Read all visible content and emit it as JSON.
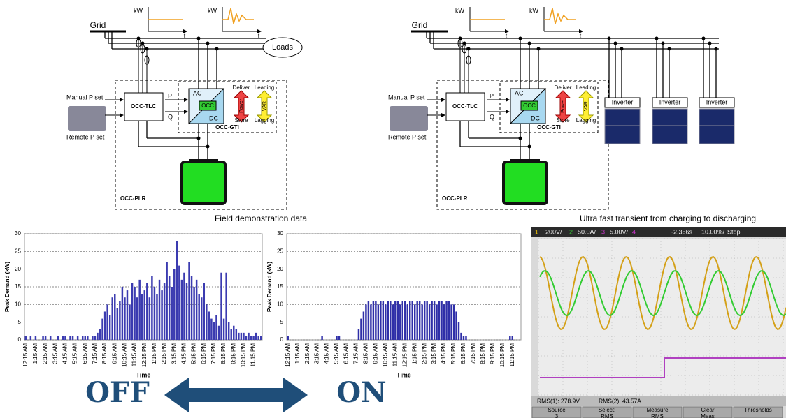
{
  "diagrams": [
    {
      "grid": "Grid",
      "kw_labels": [
        "kW",
        "kW"
      ],
      "t_labels": [
        "t",
        "t"
      ],
      "loads": "Loads",
      "manual": "Manual P set",
      "remote": "Remote P set",
      "tlc": "OCC-TLC",
      "p": "P",
      "q": "Q",
      "ac": "AC",
      "dc": "DC",
      "occ": "OCC",
      "deliver": "Deliver",
      "power": "Power",
      "store": "Store",
      "leading": "Leading",
      "var": "VAR",
      "lagging": "Lagging",
      "gti": "OCC-GTI",
      "plr": "OCC-PLR"
    },
    {
      "grid": "Grid",
      "kw_labels": [
        "kW",
        "kW"
      ],
      "t_labels": [
        "t",
        "t"
      ],
      "manual": "Manual P set",
      "remote": "Remote P set",
      "tlc": "OCC-TLC",
      "p": "P",
      "q": "Q",
      "ac": "AC",
      "dc": "DC",
      "occ": "OCC",
      "deliver": "Deliver",
      "power": "Power",
      "store": "Store",
      "leading": "Leading",
      "var": "VAR",
      "lagging": "Lagging",
      "gti": "OCC-GTI",
      "plr": "OCC-PLR",
      "inverters": [
        "Inverter",
        "Inverter",
        "Inverter"
      ]
    }
  ],
  "captions": [
    "Field demonstration data",
    "Ultra fast transient from charging to discharging"
  ],
  "arrow": {
    "left": "OFF",
    "right": "ON"
  },
  "chart_data": [
    {
      "type": "bar",
      "ylabel": "Peak Demand (kW)",
      "xlabel": "Time",
      "color": "#3b3bb0",
      "ylim": [
        0,
        30
      ],
      "yticks": [
        0,
        5,
        10,
        15,
        20,
        25,
        30
      ],
      "grid": true,
      "categories": [
        "12:15 AM",
        null,
        null,
        null,
        "1:15 AM",
        null,
        null,
        null,
        "2:15 AM",
        null,
        null,
        null,
        "3:15 AM",
        null,
        null,
        null,
        "4:15 AM",
        null,
        null,
        null,
        "5:15 AM",
        null,
        null,
        null,
        "6:15 AM",
        null,
        null,
        null,
        "7:15 AM",
        null,
        null,
        null,
        "8:15 AM",
        null,
        null,
        null,
        "9:15 AM",
        null,
        null,
        null,
        "10:15 AM",
        null,
        null,
        null,
        "11:15 AM",
        null,
        null,
        null,
        "12:15 PM",
        null,
        null,
        null,
        "1:15 PM",
        null,
        null,
        null,
        "2:15 PM",
        null,
        null,
        null,
        "3:15 PM",
        null,
        null,
        null,
        "4:15 PM",
        null,
        null,
        null,
        "5:15 PM",
        null,
        null,
        null,
        "6:15 PM",
        null,
        null,
        null,
        "7:15 PM",
        null,
        null,
        null,
        "8:15 PM",
        null,
        null,
        null,
        "9:15 PM",
        null,
        null,
        null,
        "10:15 PM",
        null,
        null,
        null,
        "11:15 PM",
        null,
        null,
        null
      ],
      "values": [
        1,
        0,
        1,
        0,
        1,
        0,
        0,
        1,
        1,
        0,
        1,
        0,
        0,
        1,
        0,
        1,
        1,
        0,
        1,
        1,
        0,
        1,
        0,
        1,
        1,
        1,
        0,
        1,
        1,
        2,
        3,
        6,
        8,
        10,
        7,
        12,
        13,
        9,
        11,
        15,
        12,
        14,
        10,
        16,
        15,
        12,
        17,
        13,
        14,
        16,
        12,
        18,
        15,
        13,
        17,
        14,
        16,
        22,
        18,
        15,
        20,
        28,
        21,
        17,
        19,
        16,
        22,
        18,
        15,
        17,
        13,
        12,
        16,
        10,
        8,
        6,
        5,
        7,
        4,
        19,
        6,
        19,
        5,
        3,
        4,
        3,
        2,
        2,
        2,
        1,
        2,
        1,
        1,
        2,
        1,
        1
      ]
    },
    {
      "type": "bar",
      "ylabel": "Peak Demand (kW)",
      "xlabel": "Time",
      "color": "#2f2fa8",
      "ylim": [
        0,
        30
      ],
      "yticks": [
        0,
        5,
        10,
        15,
        20,
        25,
        30
      ],
      "grid": true,
      "categories": [
        "12:15 AM",
        null,
        null,
        null,
        "1:15 AM",
        null,
        null,
        null,
        "2:15 AM",
        null,
        null,
        null,
        "3:15 AM",
        null,
        null,
        null,
        "4:15 AM",
        null,
        null,
        null,
        "5:15 AM",
        null,
        null,
        null,
        "6:15 AM",
        null,
        null,
        null,
        "7:15 AM",
        null,
        null,
        null,
        "8:15 AM",
        null,
        null,
        null,
        "9:15 AM",
        null,
        null,
        null,
        "10:15 AM",
        null,
        null,
        null,
        "11:15 AM",
        null,
        null,
        null,
        "12:15 PM",
        null,
        null,
        null,
        "1:15 PM",
        null,
        null,
        null,
        "2:15 PM",
        null,
        null,
        null,
        "3:15 PM",
        null,
        null,
        null,
        "4:15 PM",
        null,
        null,
        null,
        "5:15 PM",
        null,
        null,
        null,
        "6:15 PM",
        null,
        null,
        null,
        "7:15 PM",
        null,
        null,
        null,
        "8:15 PM",
        null,
        null,
        null,
        "9:15 PM",
        null,
        null,
        null,
        "10:15 PM",
        null,
        null,
        null,
        "11:15 PM",
        null,
        null,
        null
      ],
      "values": [
        1,
        0,
        0,
        0,
        0,
        0,
        0,
        0,
        0,
        0,
        0,
        0,
        0,
        0,
        1,
        0,
        0,
        0,
        0,
        0,
        1,
        1,
        0,
        0,
        0,
        0,
        0,
        0,
        0,
        3,
        6,
        8,
        10,
        11,
        10,
        11,
        11,
        10,
        11,
        11,
        10,
        11,
        11,
        10,
        11,
        11,
        10,
        11,
        11,
        10,
        11,
        11,
        10,
        11,
        11,
        10,
        11,
        11,
        10,
        11,
        11,
        10,
        11,
        11,
        10,
        11,
        11,
        10,
        10,
        8,
        5,
        2,
        1,
        1,
        0,
        0,
        0,
        0,
        0,
        0,
        0,
        0,
        0,
        0,
        0,
        0,
        0,
        0,
        0,
        0,
        0,
        1,
        1,
        0,
        0,
        0
      ]
    }
  ],
  "scope": {
    "status": [
      "1",
      "200V/",
      "2",
      "50.0A/",
      "3",
      "5.00V/",
      "4",
      "-2.356s",
      "10.00%/",
      "Stop"
    ],
    "readouts": [
      "RMS(1): 278.9V",
      "RMS(2): 43.57A"
    ],
    "menu": [
      [
        "Source",
        "3"
      ],
      [
        "Select:",
        "RMS"
      ],
      [
        "Measure",
        "RMS"
      ],
      [
        "Clear",
        "Meas"
      ],
      [
        "Thresholds"
      ]
    ]
  }
}
